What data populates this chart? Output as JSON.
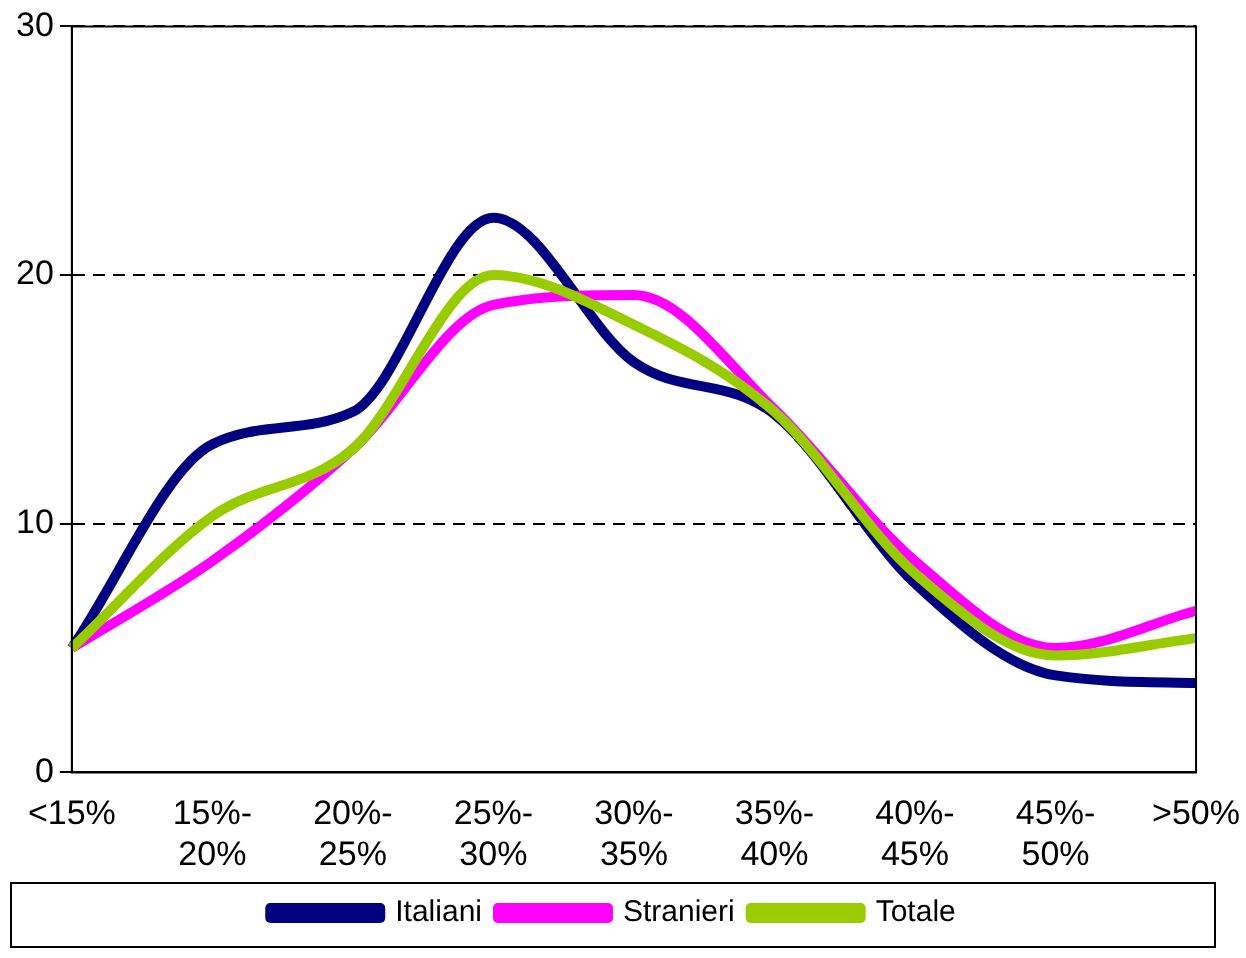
{
  "chart_data": {
    "type": "line",
    "categories": [
      "<15%",
      "15%-20%",
      "20%-25%",
      "25%-30%",
      "30%-35%",
      "35%-40%",
      "40%-45%",
      "45%-50%",
      ">50%"
    ],
    "series": [
      {
        "name": "Italiani",
        "color": "#000080",
        "values": [
          5,
          13.2,
          14.5,
          22.3,
          16.5,
          14.4,
          7.6,
          3.9,
          3.6
        ]
      },
      {
        "name": "Stranieri",
        "color": "#ff00ff",
        "values": [
          5,
          8.5,
          13,
          18.8,
          19.2,
          14.6,
          8.5,
          5,
          6.5
        ]
      },
      {
        "name": "Totale",
        "color": "#99cc00",
        "values": [
          5,
          10.3,
          13,
          20,
          18,
          14.5,
          8,
          4.7,
          5.4
        ]
      }
    ],
    "ylim": [
      0,
      30
    ],
    "yticks": [
      0,
      10,
      20,
      30
    ],
    "grid": "y",
    "legend": "bottom",
    "marker": "none",
    "line_style": "solid"
  }
}
